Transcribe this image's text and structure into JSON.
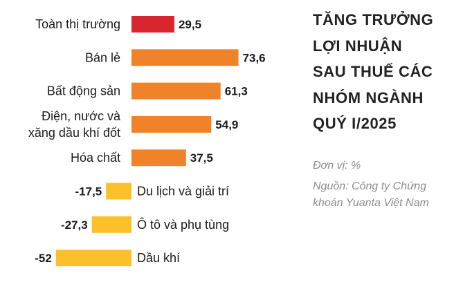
{
  "title_lines": [
    "TĂNG TRƯỞNG",
    "LỢI NHUẬN",
    "SAU THUẾ CÁC",
    "NHÓM NGÀNH",
    "QUÝ I/2025"
  ],
  "unit": "Đơn vị: %",
  "source_lines": [
    "Nguồn: Công ty Chứng",
    "khoán Yuanta Việt Nam"
  ],
  "colors": {
    "market": "#d7262e",
    "positive": "#f0832a",
    "negative": "#fcc02b",
    "text": "#1a1a1a",
    "note": "#8c8c8c"
  },
  "chart_data": {
    "type": "bar",
    "orientation": "horizontal",
    "categories": [
      [
        "Toàn thị trường"
      ],
      [
        "Bán lẻ"
      ],
      [
        "Bất động sản"
      ],
      [
        "Điện, nước và",
        "xăng dầu khí đốt"
      ],
      [
        "Hóa chất"
      ],
      [
        "Du lịch và giải trí"
      ],
      [
        "Ô tô và phụ tùng"
      ],
      [
        "Dầu khí"
      ]
    ],
    "values": [
      29.5,
      73.6,
      61.3,
      54.9,
      37.5,
      -17.5,
      -27.3,
      -52
    ],
    "value_labels": [
      "29,5",
      "73,6",
      "61,3",
      "54,9",
      "37,5",
      "-17,5",
      "-27,3",
      "-52"
    ],
    "bar_colors": [
      "market",
      "positive",
      "positive",
      "positive",
      "positive",
      "negative",
      "negative",
      "negative"
    ]
  }
}
